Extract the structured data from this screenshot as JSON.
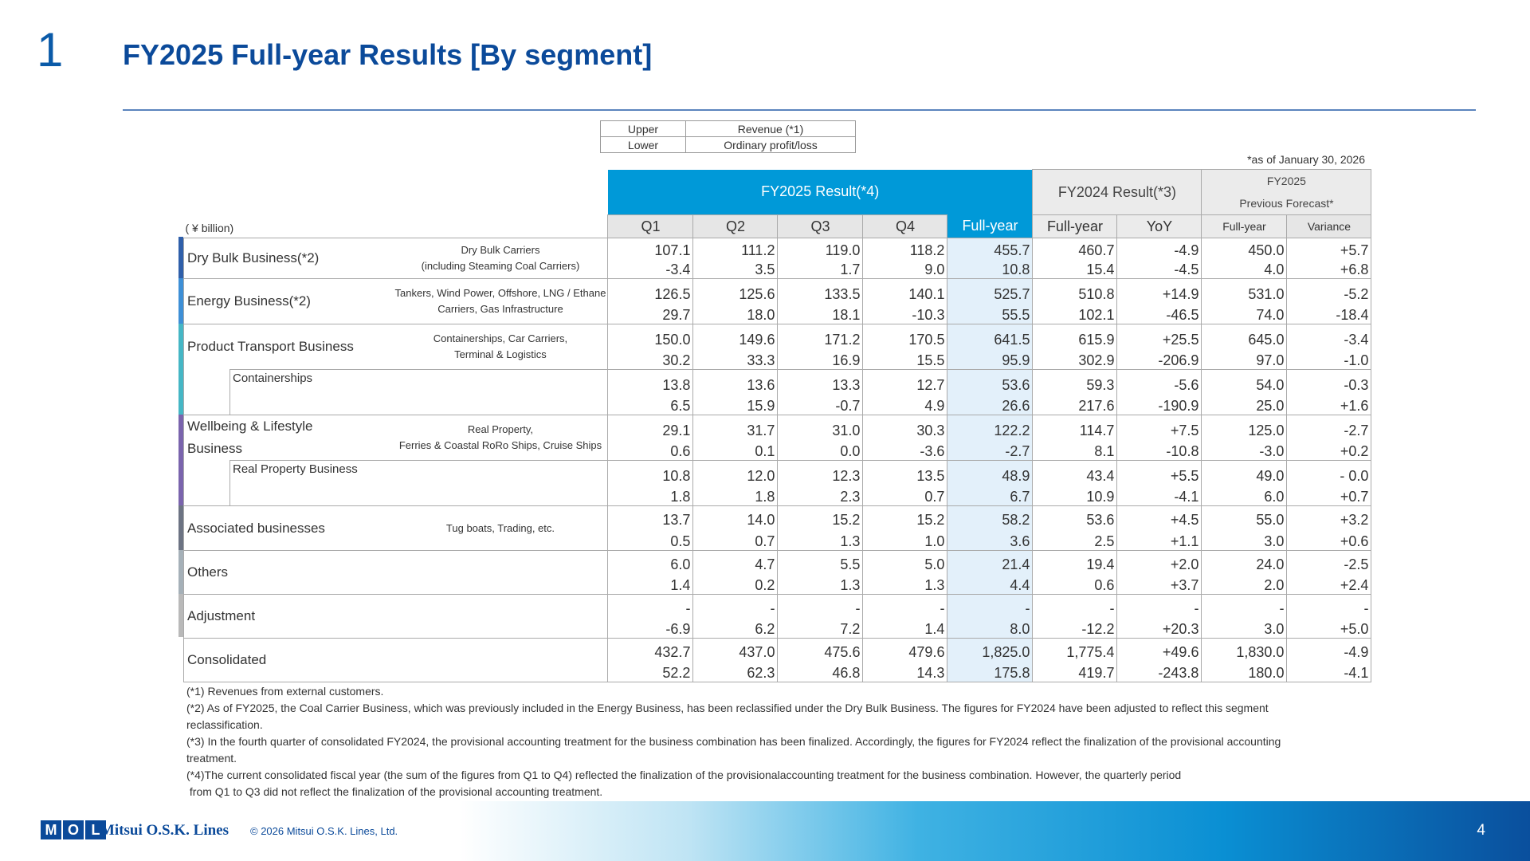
{
  "slide_number": "1",
  "title": "FY2025 Full-year Results [By segment]",
  "legend": {
    "upper_label": "Upper",
    "upper_value": "Revenue (*1)",
    "lower_label": "Lower",
    "lower_value": "Ordinary profit/loss"
  },
  "as_of": "*as of January 30, 2026",
  "unit": "( ¥ billion)",
  "headers": {
    "fy2025_result": "FY2025 Result(*4)",
    "fy2024_result": "FY2024 Result(*3)",
    "forecast_line1": "FY2025",
    "forecast_line2": "Previous Forecast*",
    "q1": "Q1",
    "q2": "Q2",
    "q3": "Q3",
    "q4": "Q4",
    "full_year": "Full-year",
    "yoy": "YoY",
    "forecast_full_year": "Full-year",
    "variance": "Variance"
  },
  "segments": [
    {
      "name": "Dry Bulk Business(*2)",
      "desc1": "Dry Bulk Carriers",
      "desc2": "(including Steaming Coal Carriers)",
      "upper": [
        "107.1",
        "111.2",
        "119.0",
        "118.2",
        "455.7",
        "460.7",
        "-4.9",
        "450.0",
        "+5.7"
      ],
      "lower": [
        "-3.4",
        "3.5",
        "1.7",
        "9.0",
        "10.8",
        "15.4",
        "-4.5",
        "4.0",
        "+6.8"
      ]
    },
    {
      "name": "Energy Business(*2)",
      "desc1": "Tankers, Wind Power, Offshore, LNG / Ethane",
      "desc2": "Carriers, Gas Infrastructure",
      "upper": [
        "126.5",
        "125.6",
        "133.5",
        "140.1",
        "525.7",
        "510.8",
        "+14.9",
        "531.0",
        "-5.2"
      ],
      "lower": [
        "29.7",
        "18.0",
        "18.1",
        "-10.3",
        "55.5",
        "102.1",
        "-46.5",
        "74.0",
        "-18.4"
      ]
    },
    {
      "name": "Product Transport Business",
      "desc1": "Containerships, Car Carriers,",
      "desc2": "Terminal & Logistics",
      "upper": [
        "150.0",
        "149.6",
        "171.2",
        "170.5",
        "641.5",
        "615.9",
        "+25.5",
        "645.0",
        "-3.4"
      ],
      "lower": [
        "30.2",
        "33.3",
        "16.9",
        "15.5",
        "95.9",
        "302.9",
        "-206.9",
        "97.0",
        "-1.0"
      ]
    },
    {
      "name": "Containerships",
      "upper": [
        "13.8",
        "13.6",
        "13.3",
        "12.7",
        "53.6",
        "59.3",
        "-5.6",
        "54.0",
        "-0.3"
      ],
      "lower": [
        "6.5",
        "15.9",
        "-0.7",
        "4.9",
        "26.6",
        "217.6",
        "-190.9",
        "25.0",
        "+1.6"
      ]
    },
    {
      "name1": "Wellbeing & Lifestyle",
      "name2": "Business",
      "desc1": "Real Property,",
      "desc2": "Ferries & Coastal RoRo Ships, Cruise Ships",
      "upper": [
        "29.1",
        "31.7",
        "31.0",
        "30.3",
        "122.2",
        "114.7",
        "+7.5",
        "125.0",
        "-2.7"
      ],
      "lower": [
        "0.6",
        "0.1",
        "0.0",
        "-3.6",
        "-2.7",
        "8.1",
        "-10.8",
        "-3.0",
        "+0.2"
      ]
    },
    {
      "name": "Real Property Business",
      "upper": [
        "10.8",
        "12.0",
        "12.3",
        "13.5",
        "48.9",
        "43.4",
        "+5.5",
        "49.0",
        "- 0.0"
      ],
      "lower": [
        "1.8",
        "1.8",
        "2.3",
        "0.7",
        "6.7",
        "10.9",
        "-4.1",
        "6.0",
        "+0.7"
      ]
    },
    {
      "name": "Associated businesses",
      "desc1": "Tug boats, Trading, etc.",
      "upper": [
        "13.7",
        "14.0",
        "15.2",
        "15.2",
        "58.2",
        "53.6",
        "+4.5",
        "55.0",
        "+3.2"
      ],
      "lower": [
        "0.5",
        "0.7",
        "1.3",
        "1.0",
        "3.6",
        "2.5",
        "+1.1",
        "3.0",
        "+0.6"
      ]
    },
    {
      "name": "Others",
      "upper": [
        "6.0",
        "4.7",
        "5.5",
        "5.0",
        "21.4",
        "19.4",
        "+2.0",
        "24.0",
        "-2.5"
      ],
      "lower": [
        "1.4",
        "0.2",
        "1.3",
        "1.3",
        "4.4",
        "0.6",
        "+3.7",
        "2.0",
        "+2.4"
      ]
    },
    {
      "name": "Adjustment",
      "upper": [
        "-",
        "-",
        "-",
        "-",
        "-",
        "-",
        "-",
        "-",
        "-"
      ],
      "lower": [
        "-6.9",
        "6.2",
        "7.2",
        "1.4",
        "8.0",
        "-12.2",
        "+20.3",
        "3.0",
        "+5.0"
      ]
    },
    {
      "name": "Consolidated",
      "upper": [
        "432.7",
        "437.0",
        "475.6",
        "479.6",
        "1,825.0",
        "1,775.4",
        "+49.6",
        "1,830.0",
        "-4.9"
      ],
      "lower": [
        "52.2",
        "62.3",
        "46.8",
        "14.3",
        "175.8",
        "419.7",
        "-243.8",
        "180.0",
        "-4.1"
      ]
    }
  ],
  "bar_colors": [
    "#2f5faa",
    "#3d8fd6",
    "#45b6c5",
    "#7a64ad",
    "#6c7383",
    "#a5b0b8",
    "#b9b9b9"
  ],
  "notes": [
    "(*1) Revenues from external customers.",
    "(*2) As of FY2025, the Coal Carrier Business, which was previously included in the Energy Business, has been reclassified under the Dry Bulk Business. The figures for FY2024 have been adjusted to reflect this segment",
    "reclassification.",
    "(*3) In the fourth quarter of consolidated FY2024, the provisional accounting treatment for the business combination has been finalized. Accordingly, the figures for FY2024 reflect the finalization of the provisional accounting",
    "treatment.",
    "(*4)The current consolidated fiscal year (the sum of the figures from Q1 to Q4) reflected the finalization of the provisionalaccounting treatment for the business combination. However, the quarterly period",
    " from Q1 to Q3 did not reflect the finalization of the provisional accounting treatment."
  ],
  "footer": {
    "logo_letters": [
      "M",
      "O",
      "L"
    ],
    "logo_text": "Mitsui O.S.K. Lines",
    "copyright": "© 2026 Mitsui O.S.K. Lines, Ltd.",
    "page": "4"
  }
}
